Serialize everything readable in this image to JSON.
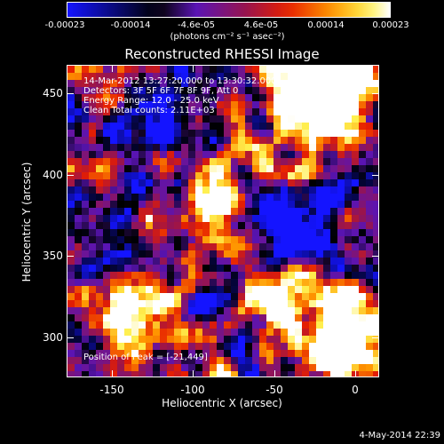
{
  "colorbar": {
    "tick_labels": [
      "-0.00023",
      "-0.00014",
      "-4.6e-05",
      "4.6e-05",
      "0.00014",
      "0.00023"
    ],
    "units": "(photons cm⁻² s⁻¹ asec⁻²)"
  },
  "plot": {
    "title": "Reconstructed RHESSI Image",
    "info": [
      "14-Mar-2012 13:27:20.000 to 13:30:32.000",
      "Detectors: 3F 5F 6F 7F 8F 9F, Att 0",
      "Energy Range: 12.0 - 25.0 keV",
      "Clean      Total counts: 2.11E+03"
    ],
    "peak_label": "Position of Peak = [-21,449]",
    "xlabel": "Heliocentric X (arcsec)",
    "ylabel": "Heliocentric Y (arcsec)",
    "xticks": [
      "-150",
      "-100",
      "-50",
      "0"
    ],
    "yticks": [
      "450",
      "400",
      "350",
      "300"
    ],
    "x_range": [
      -176,
      16
    ],
    "y_range": [
      272,
      464
    ]
  },
  "footer": {
    "date": "4-May-2014 22:39"
  },
  "colors": {
    "background": "#000000",
    "foreground": "#ffffff"
  }
}
